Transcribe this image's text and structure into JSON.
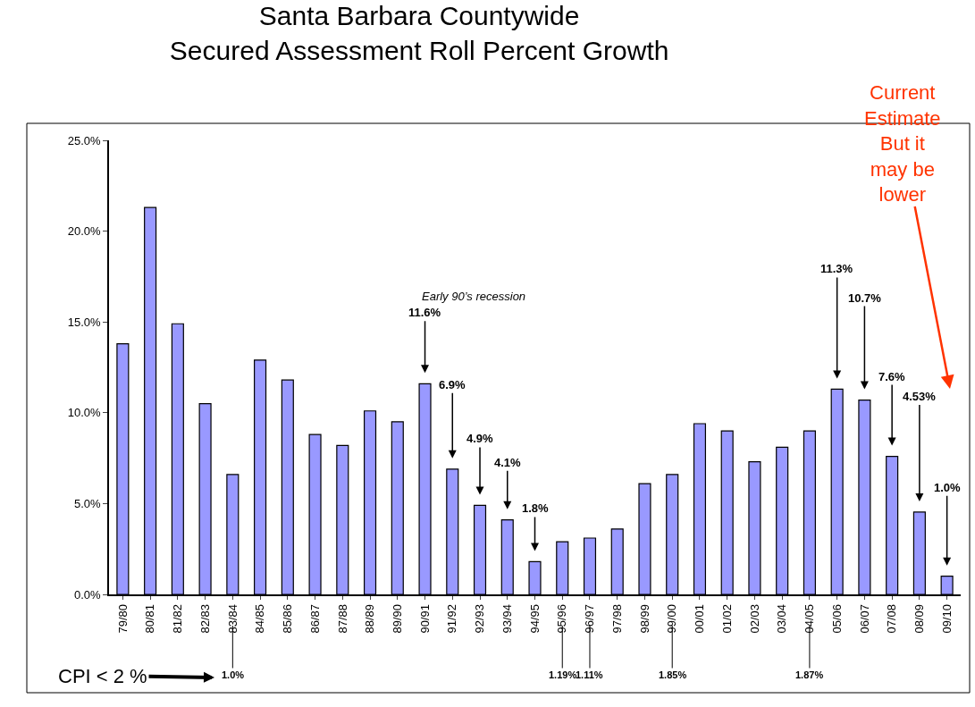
{
  "chart_data": {
    "type": "bar",
    "title": "Santa Barbara Countywide\nSecured Assessment Roll Percent Growth",
    "categories": [
      "79/80",
      "80/81",
      "81/82",
      "82/83",
      "83/84",
      "84/85",
      "85/86",
      "86/87",
      "87/88",
      "88/89",
      "89/90",
      "90/91",
      "91/92",
      "92/93",
      "93/94",
      "94/95",
      "95/96",
      "96/97",
      "97/98",
      "98/99",
      "99/00",
      "00/01",
      "01/02",
      "02/03",
      "03/04",
      "04/05",
      "05/06",
      "06/07",
      "07/08",
      "08/09",
      "09/10"
    ],
    "values": [
      13.8,
      21.3,
      14.9,
      10.5,
      6.6,
      12.9,
      11.8,
      8.8,
      8.2,
      10.1,
      9.5,
      11.6,
      6.9,
      4.9,
      4.1,
      1.8,
      2.9,
      3.1,
      3.6,
      6.1,
      6.6,
      9.4,
      9.0,
      7.3,
      8.1,
      9.0,
      11.3,
      10.7,
      7.6,
      4.53,
      1.0
    ],
    "color": "#9999ff",
    "ylim": [
      0,
      25
    ],
    "yticks": [
      {
        "value": 0,
        "label": "0.0%"
      },
      {
        "value": 5,
        "label": "5.0%"
      },
      {
        "value": 10,
        "label": "10.0%"
      },
      {
        "value": 15,
        "label": "15.0%"
      },
      {
        "value": 20,
        "label": "20.0%"
      },
      {
        "value": 25,
        "label": "25.0%"
      }
    ],
    "annotations": [
      {
        "text": "11.6%",
        "x": "90/91",
        "y": 11.6
      },
      {
        "text": "6.9%",
        "x": "91/92",
        "y": 6.9
      },
      {
        "text": "4.9%",
        "x": "92/93",
        "y": 4.9
      },
      {
        "text": "4.1%",
        "x": "93/94",
        "y": 4.1
      },
      {
        "text": "1.8%",
        "x": "94/95",
        "y": 1.8
      },
      {
        "text": "11.3%",
        "x": "05/06",
        "y": 11.3
      },
      {
        "text": "10.7%",
        "x": "06/07",
        "y": 10.7
      },
      {
        "text": "7.6%",
        "x": "07/08",
        "y": 7.6
      },
      {
        "text": "4.53%",
        "x": "08/09",
        "y": 4.53
      },
      {
        "text": "1.0%",
        "x": "09/10",
        "y": 1.0
      },
      "Current\nEstimate\nBut it\nmay be\nlower",
      {
        "text": "1.0%",
        "x": "83/84"
      },
      {
        "text": "1.19%",
        "x": "95/96"
      },
      {
        "text": "1.11%",
        "x": "96/97"
      },
      {
        "text": "1.85%",
        "x": "99/00"
      },
      {
        "text": "1.87%",
        "x": "04/05"
      },
      "Early 90’s recession",
      "CPI < 2 %"
    ]
  }
}
